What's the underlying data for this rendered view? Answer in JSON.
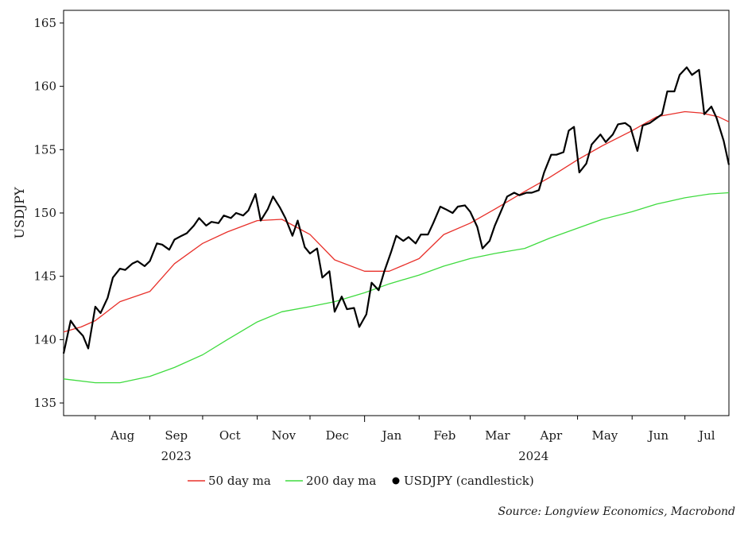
{
  "chart_data": {
    "type": "line",
    "ylabel": "USDJPY",
    "ylim": [
      134,
      166
    ],
    "yticks": [
      135,
      140,
      145,
      150,
      155,
      160,
      165
    ],
    "x_range": [
      "2023-07-14",
      "2024-07-26"
    ],
    "months": [
      {
        "label": "Aug",
        "date": "2023-08-01"
      },
      {
        "label": "Sep",
        "date": "2023-09-01"
      },
      {
        "label": "Oct",
        "date": "2023-10-01"
      },
      {
        "label": "Nov",
        "date": "2023-11-01"
      },
      {
        "label": "Dec",
        "date": "2023-12-01"
      },
      {
        "label": "Jan",
        "date": "2024-01-01"
      },
      {
        "label": "Feb",
        "date": "2024-02-01"
      },
      {
        "label": "Mar",
        "date": "2024-03-01"
      },
      {
        "label": "Apr",
        "date": "2024-04-01"
      },
      {
        "label": "May",
        "date": "2024-05-01"
      },
      {
        "label": "Jun",
        "date": "2024-06-01"
      },
      {
        "label": "Jul",
        "date": "2024-07-01"
      }
    ],
    "years": [
      {
        "label": "2023",
        "date": "2023-09-16"
      },
      {
        "label": "2024",
        "date": "2024-04-06"
      }
    ],
    "series": [
      {
        "name": "50 day ma",
        "color": "#e8302a",
        "x": [
          "2023-07-14",
          "2023-07-24",
          "2023-08-01",
          "2023-08-15",
          "2023-09-01",
          "2023-09-15",
          "2023-10-01",
          "2023-10-15",
          "2023-11-01",
          "2023-11-15",
          "2023-12-01",
          "2023-12-15",
          "2024-01-01",
          "2024-01-15",
          "2024-02-01",
          "2024-02-15",
          "2024-03-01",
          "2024-03-15",
          "2024-04-01",
          "2024-04-15",
          "2024-05-01",
          "2024-05-15",
          "2024-06-01",
          "2024-06-15",
          "2024-07-01",
          "2024-07-10",
          "2024-07-20",
          "2024-07-26"
        ],
        "values": [
          140.6,
          141.0,
          141.5,
          143.0,
          143.8,
          146.0,
          147.6,
          148.5,
          149.4,
          149.5,
          148.3,
          146.3,
          145.4,
          145.4,
          146.4,
          148.3,
          149.2,
          150.3,
          151.7,
          152.8,
          154.2,
          155.3,
          156.5,
          157.6,
          158.0,
          157.9,
          157.6,
          157.2
        ]
      },
      {
        "name": "200 day ma",
        "color": "#3fdb3f",
        "x": [
          "2023-07-14",
          "2023-08-01",
          "2023-08-15",
          "2023-09-01",
          "2023-09-15",
          "2023-10-01",
          "2023-10-15",
          "2023-11-01",
          "2023-11-15",
          "2023-12-01",
          "2023-12-15",
          "2024-01-01",
          "2024-01-15",
          "2024-02-01",
          "2024-02-15",
          "2024-03-01",
          "2024-03-15",
          "2024-04-01",
          "2024-04-15",
          "2024-05-01",
          "2024-05-15",
          "2024-06-01",
          "2024-06-15",
          "2024-07-01",
          "2024-07-15",
          "2024-07-26"
        ],
        "values": [
          136.9,
          136.6,
          136.6,
          137.1,
          137.8,
          138.8,
          140.0,
          141.4,
          142.2,
          142.6,
          143.0,
          143.7,
          144.4,
          145.1,
          145.8,
          146.4,
          146.8,
          147.2,
          148.0,
          148.8,
          149.5,
          150.1,
          150.7,
          151.2,
          151.5,
          151.6
        ]
      },
      {
        "name": "USDJPY (candlestick)",
        "color": "#000000",
        "x": [
          "2023-07-14",
          "2023-07-18",
          "2023-07-21",
          "2023-07-25",
          "2023-07-28",
          "2023-08-01",
          "2023-08-04",
          "2023-08-08",
          "2023-08-11",
          "2023-08-15",
          "2023-08-18",
          "2023-08-22",
          "2023-08-25",
          "2023-08-29",
          "2023-09-01",
          "2023-09-05",
          "2023-09-08",
          "2023-09-12",
          "2023-09-15",
          "2023-09-19",
          "2023-09-22",
          "2023-09-26",
          "2023-09-29",
          "2023-10-03",
          "2023-10-06",
          "2023-10-10",
          "2023-10-13",
          "2023-10-17",
          "2023-10-20",
          "2023-10-24",
          "2023-10-27",
          "2023-10-31",
          "2023-11-03",
          "2023-11-07",
          "2023-11-10",
          "2023-11-14",
          "2023-11-17",
          "2023-11-21",
          "2023-11-24",
          "2023-11-28",
          "2023-12-01",
          "2023-12-05",
          "2023-12-08",
          "2023-12-12",
          "2023-12-15",
          "2023-12-19",
          "2023-12-22",
          "2023-12-26",
          "2023-12-29",
          "2024-01-02",
          "2024-01-05",
          "2024-01-09",
          "2024-01-12",
          "2024-01-16",
          "2024-01-19",
          "2024-01-23",
          "2024-01-26",
          "2024-01-30",
          "2024-02-02",
          "2024-02-06",
          "2024-02-09",
          "2024-02-13",
          "2024-02-16",
          "2024-02-20",
          "2024-02-23",
          "2024-02-27",
          "2024-03-01",
          "2024-03-05",
          "2024-03-08",
          "2024-03-12",
          "2024-03-15",
          "2024-03-19",
          "2024-03-22",
          "2024-03-26",
          "2024-03-29",
          "2024-04-02",
          "2024-04-05",
          "2024-04-09",
          "2024-04-12",
          "2024-04-16",
          "2024-04-19",
          "2024-04-23",
          "2024-04-26",
          "2024-04-29",
          "2024-05-02",
          "2024-05-06",
          "2024-05-09",
          "2024-05-14",
          "2024-05-17",
          "2024-05-21",
          "2024-05-24",
          "2024-05-28",
          "2024-05-31",
          "2024-06-04",
          "2024-06-07",
          "2024-06-11",
          "2024-06-14",
          "2024-06-18",
          "2024-06-21",
          "2024-06-25",
          "2024-06-28",
          "2024-07-02",
          "2024-07-05",
          "2024-07-09",
          "2024-07-12",
          "2024-07-16",
          "2024-07-19",
          "2024-07-23",
          "2024-07-26"
        ],
        "values": [
          138.9,
          141.5,
          140.9,
          140.3,
          139.3,
          142.6,
          142.1,
          143.3,
          144.9,
          145.6,
          145.5,
          146.0,
          146.2,
          145.8,
          146.2,
          147.6,
          147.5,
          147.1,
          147.9,
          148.2,
          148.4,
          149.0,
          149.6,
          149.0,
          149.3,
          149.2,
          149.8,
          149.6,
          150.0,
          149.8,
          150.2,
          151.5,
          149.4,
          150.3,
          151.3,
          150.4,
          149.6,
          148.2,
          149.4,
          147.3,
          146.8,
          147.2,
          144.9,
          145.4,
          142.2,
          143.4,
          142.4,
          142.5,
          141.0,
          142.0,
          144.5,
          143.9,
          145.3,
          146.9,
          148.2,
          147.8,
          148.1,
          147.6,
          148.3,
          148.3,
          149.2,
          150.5,
          150.3,
          150.0,
          150.5,
          150.6,
          150.1,
          148.9,
          147.2,
          147.8,
          149.0,
          150.3,
          151.3,
          151.6,
          151.4,
          151.6,
          151.6,
          151.8,
          153.2,
          154.6,
          154.6,
          154.8,
          156.5,
          156.8,
          153.2,
          153.9,
          155.4,
          156.2,
          155.6,
          156.2,
          157.0,
          157.1,
          156.8,
          154.9,
          156.9,
          157.1,
          157.4,
          157.8,
          159.6,
          159.6,
          160.9,
          161.5,
          160.9,
          161.3,
          157.8,
          158.4,
          157.5,
          155.7,
          153.8
        ]
      }
    ],
    "legend": {
      "position": "bottom-center"
    },
    "source": "Source: Longview Economics, Macrobond"
  }
}
